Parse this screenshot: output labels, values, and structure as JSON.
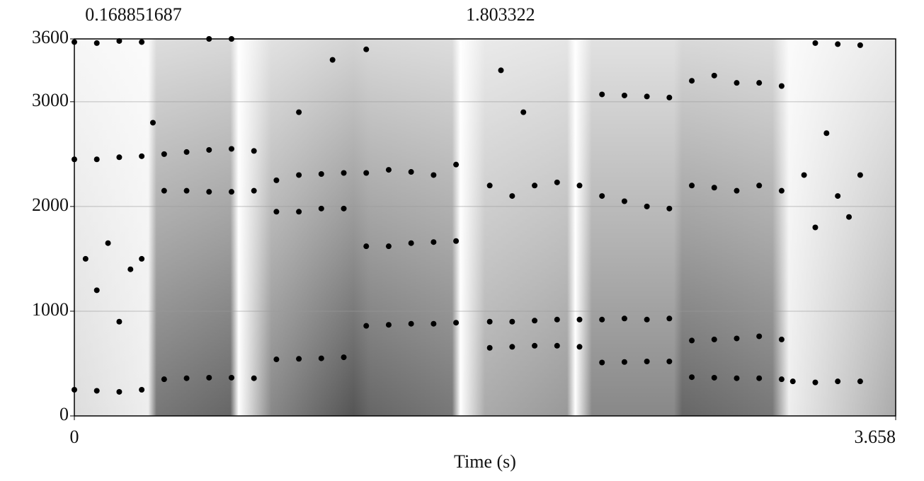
{
  "chart_data": {
    "type": "scatter",
    "xlabel": "Time (s)",
    "xlim": [
      0,
      3.658
    ],
    "xticks": [
      0,
      3.658
    ],
    "ylim": [
      0,
      3600
    ],
    "yticks": [
      0,
      1000,
      2000,
      3000,
      3600
    ],
    "top_marks": [
      0.168851687,
      1.803322
    ],
    "grid": true,
    "series": [
      {
        "color": "#000000",
        "x": [
          0,
          0.1,
          0.2,
          0.3,
          0.4,
          0.5,
          0.6,
          0.7,
          0.8,
          0.9,
          1.0,
          1.1,
          1.2,
          1.3,
          1.4,
          1.5,
          1.6,
          1.7,
          1.85,
          1.95,
          2.05,
          2.15,
          2.25,
          2.35,
          2.45,
          2.55,
          2.65,
          2.75,
          2.85,
          2.95,
          3.05,
          3.15,
          3.2,
          3.3,
          3.4,
          3.5
        ],
        "values": [
          250,
          240,
          230,
          250,
          350,
          360,
          365,
          365,
          360,
          540,
          545,
          550,
          560,
          860,
          870,
          880,
          880,
          890,
          650,
          660,
          670,
          670,
          660,
          510,
          515,
          520,
          520,
          370,
          365,
          360,
          360,
          350,
          330,
          320,
          330,
          330
        ]
      },
      {
        "color": "#000000",
        "x": [
          0,
          0.1,
          0.2,
          0.3,
          0.4,
          0.5,
          0.6,
          0.7,
          0.8,
          0.9,
          1.0,
          1.1,
          1.2,
          1.3,
          1.4,
          1.5,
          1.6,
          1.7,
          1.85,
          1.95,
          2.05,
          2.15,
          2.25,
          2.35,
          2.45,
          2.55,
          2.65,
          2.75,
          2.85,
          2.95,
          3.05,
          3.15
        ],
        "values": [
          2450,
          2450,
          2470,
          2480,
          2150,
          2150,
          2140,
          2140,
          2150,
          1950,
          1950,
          1980,
          1980,
          1620,
          1620,
          1650,
          1660,
          1670,
          900,
          900,
          910,
          920,
          920,
          920,
          930,
          920,
          930,
          720,
          730,
          740,
          760,
          730
        ]
      },
      {
        "color": "#000000",
        "x": [
          0.4,
          0.5,
          0.6,
          0.7,
          0.8,
          0.9,
          1.0,
          1.1,
          1.2,
          1.3,
          1.4,
          1.5,
          1.6,
          1.7,
          1.85,
          1.95,
          2.05,
          2.15,
          2.25,
          2.35,
          2.45,
          2.55,
          2.65,
          2.75,
          2.85,
          2.95,
          3.05,
          3.15
        ],
        "values": [
          2500,
          2520,
          2540,
          2550,
          2530,
          2250,
          2300,
          2310,
          2320,
          2320,
          2350,
          2330,
          2300,
          2400,
          2200,
          2100,
          2200,
          2230,
          2200,
          2100,
          2050,
          2000,
          1980,
          2200,
          2180,
          2150,
          2200,
          2150
        ]
      },
      {
        "color": "#000000",
        "x": [
          0,
          0.1,
          0.2,
          0.3,
          0.6,
          0.7,
          2.35,
          2.45,
          2.55,
          2.65,
          2.75,
          2.85,
          2.95,
          3.05,
          3.15,
          3.3,
          3.4,
          3.5
        ],
        "values": [
          3570,
          3560,
          3580,
          3570,
          3600,
          3600,
          3070,
          3060,
          3050,
          3040,
          3200,
          3250,
          3180,
          3180,
          3150,
          3560,
          3550,
          3540
        ]
      },
      {
        "color": "#000000",
        "x": [
          0.05,
          0.1,
          0.15,
          0.2,
          0.25,
          0.3,
          0.35,
          1.0,
          1.15,
          1.3,
          1.9,
          2.0,
          3.25,
          3.3,
          3.35,
          3.4,
          3.45,
          3.5
        ],
        "values": [
          1500,
          1200,
          1650,
          900,
          1400,
          1500,
          2800,
          2900,
          3400,
          3500,
          3300,
          2900,
          2300,
          1800,
          2700,
          2100,
          1900,
          2300
        ]
      }
    ]
  }
}
